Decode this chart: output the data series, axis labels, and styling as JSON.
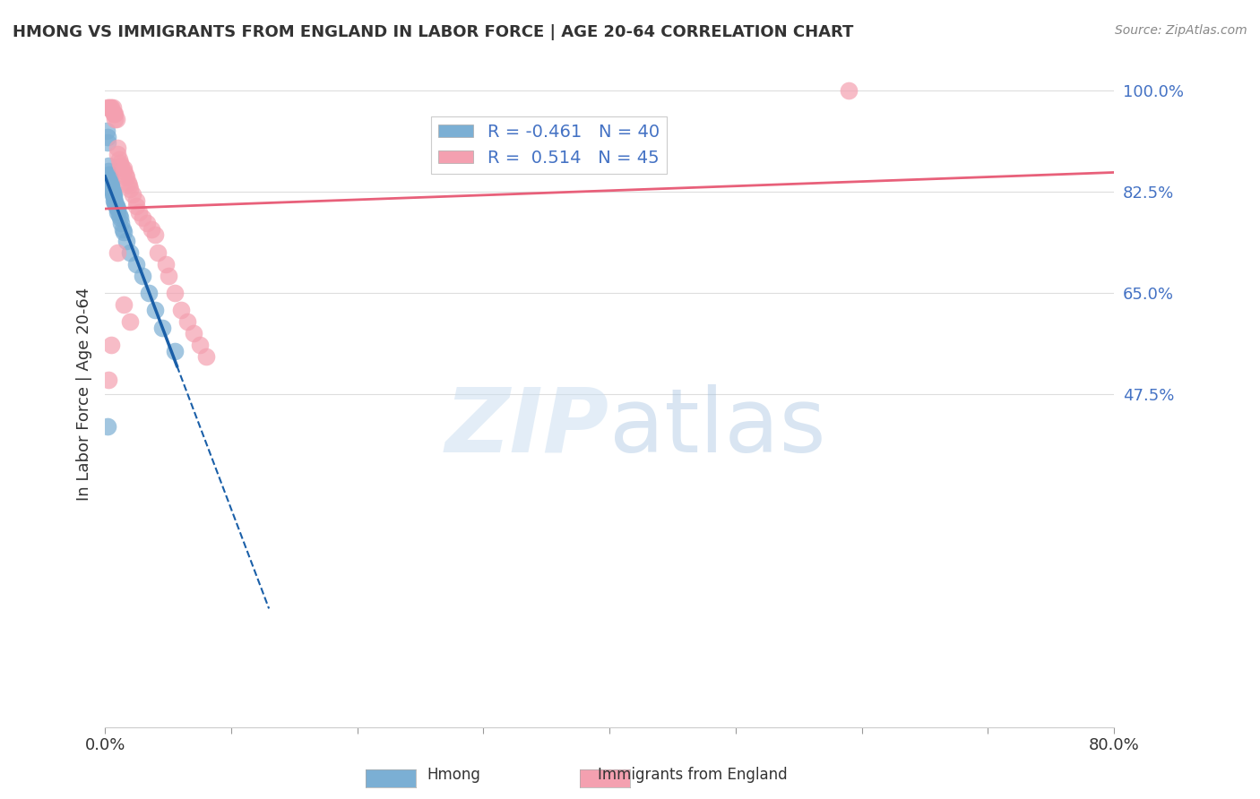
{
  "title": "HMONG VS IMMIGRANTS FROM ENGLAND IN LABOR FORCE | AGE 20-64 CORRELATION CHART",
  "source": "Source: ZipAtlas.com",
  "xlabel_bottom": "",
  "ylabel": "In Labor Force | Age 20-64",
  "xlim": [
    0.0,
    0.8
  ],
  "ylim": [
    -0.1,
    1.05
  ],
  "xticks": [
    0.0,
    0.1,
    0.2,
    0.3,
    0.4,
    0.5,
    0.6,
    0.7,
    0.8
  ],
  "xticklabels": [
    "0.0%",
    "",
    "",
    "",
    "",
    "",
    "",
    "",
    "80.0%"
  ],
  "ytick_positions": [
    0.475,
    0.65,
    0.825,
    1.0
  ],
  "ytick_labels": [
    "47.5%",
    "65.0%",
    "82.5%",
    "100.0%"
  ],
  "hmong_R": -0.461,
  "hmong_N": 40,
  "england_R": 0.514,
  "england_N": 45,
  "hmong_color": "#7bafd4",
  "england_color": "#f4a0b0",
  "hmong_line_color": "#1a5fa8",
  "england_line_color": "#e8607a",
  "watermark": "ZIPatlas",
  "background_color": "#ffffff",
  "grid_color": "#dddddd",
  "legend_box_color": "#ffffff",
  "hmong_x": [
    0.001,
    0.002,
    0.002,
    0.003,
    0.003,
    0.003,
    0.004,
    0.004,
    0.004,
    0.004,
    0.005,
    0.005,
    0.005,
    0.005,
    0.006,
    0.006,
    0.006,
    0.007,
    0.007,
    0.007,
    0.008,
    0.008,
    0.009,
    0.009,
    0.01,
    0.01,
    0.011,
    0.012,
    0.013,
    0.014,
    0.015,
    0.017,
    0.02,
    0.025,
    0.03,
    0.035,
    0.04,
    0.045,
    0.055,
    0.002
  ],
  "hmong_y": [
    0.93,
    0.92,
    0.91,
    0.87,
    0.86,
    0.855,
    0.855,
    0.85,
    0.845,
    0.84,
    0.84,
    0.838,
    0.835,
    0.83,
    0.828,
    0.825,
    0.82,
    0.82,
    0.815,
    0.81,
    0.808,
    0.805,
    0.8,
    0.798,
    0.795,
    0.79,
    0.785,
    0.78,
    0.77,
    0.76,
    0.755,
    0.74,
    0.72,
    0.7,
    0.68,
    0.65,
    0.62,
    0.59,
    0.55,
    0.42
  ],
  "england_x": [
    0.002,
    0.003,
    0.004,
    0.005,
    0.006,
    0.007,
    0.007,
    0.008,
    0.008,
    0.009,
    0.01,
    0.01,
    0.011,
    0.012,
    0.013,
    0.015,
    0.015,
    0.016,
    0.017,
    0.018,
    0.019,
    0.02,
    0.022,
    0.025,
    0.025,
    0.027,
    0.03,
    0.033,
    0.037,
    0.04,
    0.042,
    0.048,
    0.05,
    0.055,
    0.06,
    0.065,
    0.07,
    0.075,
    0.08,
    0.01,
    0.015,
    0.02,
    0.005,
    0.003,
    0.59
  ],
  "england_y": [
    0.97,
    0.97,
    0.97,
    0.97,
    0.97,
    0.96,
    0.96,
    0.96,
    0.95,
    0.95,
    0.9,
    0.89,
    0.88,
    0.875,
    0.87,
    0.865,
    0.86,
    0.855,
    0.85,
    0.84,
    0.835,
    0.83,
    0.82,
    0.81,
    0.8,
    0.79,
    0.78,
    0.77,
    0.76,
    0.75,
    0.72,
    0.7,
    0.68,
    0.65,
    0.62,
    0.6,
    0.58,
    0.56,
    0.54,
    0.72,
    0.63,
    0.6,
    0.56,
    0.5,
    1.0
  ]
}
